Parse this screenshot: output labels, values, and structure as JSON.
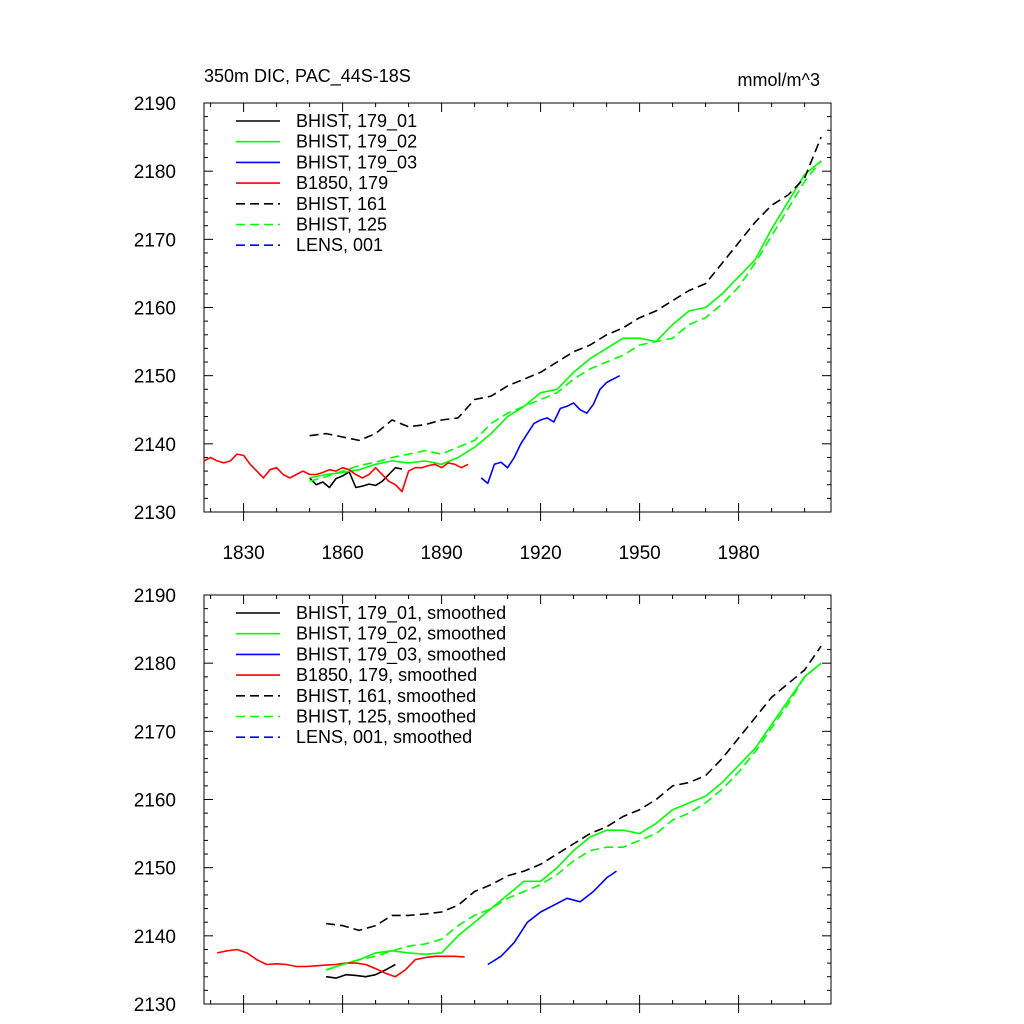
{
  "chart_data": [
    {
      "type": "line",
      "title_left": "350m DIC, PAC_44S-18S",
      "title_right": "mmol/m^3",
      "xlim": [
        1818,
        2008
      ],
      "ylim": [
        2130,
        2190
      ],
      "yticks": [
        2130,
        2140,
        2150,
        2160,
        2170,
        2180,
        2190
      ],
      "xticks": [
        1830,
        1860,
        1890,
        1920,
        1950,
        1980
      ],
      "show_x_tick_labels": true,
      "legend_position": "top-left",
      "series": [
        {
          "name": "BHIST, 179_01",
          "color": "#000000",
          "dash": "solid",
          "x": [
            1850,
            1852,
            1854,
            1856,
            1858,
            1860,
            1862,
            1864,
            1866,
            1868,
            1870,
            1872,
            1874,
            1876,
            1878
          ],
          "y": [
            2135.0,
            2134.0,
            2134.4,
            2133.6,
            2134.9,
            2135.3,
            2135.9,
            2133.6,
            2133.8,
            2134.1,
            2133.9,
            2134.5,
            2135.5,
            2136.5,
            2136.3
          ]
        },
        {
          "name": "BHIST, 179_02",
          "color": "#00ff00",
          "dash": "solid",
          "x": [
            1850,
            1855,
            1860,
            1865,
            1870,
            1875,
            1880,
            1885,
            1890,
            1895,
            1900,
            1905,
            1910,
            1915,
            1920,
            1925,
            1930,
            1935,
            1940,
            1945,
            1950,
            1955,
            1960,
            1965,
            1970,
            1975,
            1980,
            1985,
            1990,
            1995,
            2000,
            2005
          ],
          "y": [
            2135.0,
            2135.5,
            2135.8,
            2136.2,
            2137.0,
            2137.5,
            2137.2,
            2137.5,
            2137.0,
            2138.0,
            2139.5,
            2141.5,
            2144.0,
            2145.5,
            2147.5,
            2148.0,
            2150.5,
            2152.5,
            2154.0,
            2155.5,
            2155.5,
            2155.0,
            2157.5,
            2159.5,
            2160.0,
            2162.0,
            2164.5,
            2167.0,
            2171.5,
            2175.5,
            2179.5,
            2181.5
          ]
        },
        {
          "name": "BHIST, 179_03",
          "color": "#0000ff",
          "dash": "solid",
          "x": [
            1902,
            1904,
            1906,
            1908,
            1910,
            1912,
            1914,
            1916,
            1918,
            1920,
            1922,
            1924,
            1926,
            1928,
            1930,
            1932,
            1934,
            1936,
            1938,
            1940,
            1942,
            1944
          ],
          "y": [
            2135.0,
            2134.2,
            2137.0,
            2137.3,
            2136.5,
            2138.0,
            2140.0,
            2141.5,
            2143.0,
            2143.5,
            2143.8,
            2143.2,
            2145.2,
            2145.5,
            2146.0,
            2145.0,
            2144.5,
            2145.8,
            2148.0,
            2149.0,
            2149.5,
            2150.0
          ]
        },
        {
          "name": "B1850, 179",
          "color": "#ff0000",
          "dash": "solid",
          "x": [
            1818,
            1820,
            1822,
            1824,
            1826,
            1828,
            1830,
            1832,
            1834,
            1836,
            1838,
            1840,
            1842,
            1844,
            1846,
            1848,
            1850,
            1852,
            1854,
            1856,
            1858,
            1860,
            1862,
            1864,
            1866,
            1868,
            1870,
            1872,
            1874,
            1876,
            1878,
            1880,
            1882,
            1884,
            1886,
            1888,
            1890,
            1892,
            1894,
            1896,
            1898
          ],
          "y": [
            2137.5,
            2138.0,
            2137.5,
            2137.2,
            2137.5,
            2138.5,
            2138.3,
            2137.0,
            2136.0,
            2135.0,
            2136.2,
            2136.5,
            2135.5,
            2135.0,
            2135.5,
            2136.0,
            2135.5,
            2135.5,
            2135.8,
            2136.2,
            2136.0,
            2136.5,
            2136.2,
            2135.5,
            2135.0,
            2135.5,
            2136.5,
            2135.5,
            2134.5,
            2134.0,
            2133.0,
            2136.0,
            2136.5,
            2136.5,
            2136.8,
            2137.0,
            2136.5,
            2137.2,
            2137.0,
            2136.5,
            2137.0
          ]
        },
        {
          "name": "BHIST, 161",
          "color": "#000000",
          "dash": "dashed",
          "x": [
            1850,
            1855,
            1860,
            1865,
            1870,
            1875,
            1880,
            1885,
            1890,
            1895,
            1900,
            1905,
            1910,
            1915,
            1920,
            1925,
            1930,
            1935,
            1940,
            1945,
            1950,
            1955,
            1960,
            1965,
            1970,
            1975,
            1980,
            1985,
            1990,
            1995,
            2000,
            2005
          ],
          "y": [
            2141.2,
            2141.5,
            2141.0,
            2140.5,
            2141.5,
            2143.5,
            2142.5,
            2142.8,
            2143.5,
            2143.8,
            2146.5,
            2147.0,
            2148.5,
            2149.5,
            2150.5,
            2152.0,
            2153.5,
            2154.5,
            2156.0,
            2157.0,
            2158.5,
            2159.5,
            2161.0,
            2162.5,
            2163.5,
            2166.5,
            2169.5,
            2172.5,
            2175.0,
            2176.5,
            2179.0,
            2185.0
          ]
        },
        {
          "name": "BHIST, 125",
          "color": "#00ff00",
          "dash": "dashed",
          "x": [
            1850,
            1855,
            1860,
            1865,
            1870,
            1875,
            1880,
            1885,
            1890,
            1895,
            1900,
            1905,
            1910,
            1915,
            1920,
            1925,
            1930,
            1935,
            1940,
            1945,
            1950,
            1955,
            1960,
            1965,
            1970,
            1975,
            1980,
            1985,
            1990,
            1995,
            2000,
            2005
          ],
          "y": [
            2134.5,
            2135.2,
            2136.0,
            2136.8,
            2137.3,
            2138.0,
            2138.5,
            2139.0,
            2138.5,
            2139.5,
            2140.5,
            2143.0,
            2144.5,
            2145.5,
            2146.5,
            2147.5,
            2149.5,
            2151.0,
            2152.0,
            2153.0,
            2154.5,
            2155.0,
            2155.5,
            2157.5,
            2158.5,
            2160.5,
            2163.0,
            2166.5,
            2170.5,
            2174.5,
            2178.5,
            2181.5
          ]
        }
      ]
    },
    {
      "type": "line",
      "xlim": [
        1818,
        2008
      ],
      "ylim": [
        2130,
        2190
      ],
      "yticks": [
        2130,
        2140,
        2150,
        2160,
        2170,
        2180,
        2190
      ],
      "xticks": [
        1830,
        1860,
        1890,
        1920,
        1950,
        1980
      ],
      "show_x_tick_labels": false,
      "legend_position": "top-left",
      "series": [
        {
          "name": "BHIST, 179_01, smoothed",
          "color": "#000000",
          "dash": "solid",
          "x": [
            1855,
            1858,
            1861,
            1864,
            1867,
            1870,
            1873,
            1876
          ],
          "y": [
            2134.0,
            2133.8,
            2134.3,
            2134.2,
            2134.0,
            2134.3,
            2135.0,
            2135.8
          ]
        },
        {
          "name": "BHIST, 179_02, smoothed",
          "color": "#00ff00",
          "dash": "solid",
          "x": [
            1855,
            1860,
            1865,
            1870,
            1875,
            1880,
            1885,
            1890,
            1895,
            1900,
            1905,
            1910,
            1915,
            1920,
            1925,
            1930,
            1935,
            1940,
            1945,
            1950,
            1955,
            1960,
            1965,
            1970,
            1975,
            1980,
            1985,
            1990,
            1995,
            2000,
            2005
          ],
          "y": [
            2135.0,
            2135.8,
            2136.5,
            2137.5,
            2137.8,
            2137.5,
            2137.3,
            2137.5,
            2140.0,
            2142.0,
            2144.0,
            2146.0,
            2148.0,
            2148.0,
            2150.0,
            2152.5,
            2154.5,
            2155.5,
            2155.5,
            2155.0,
            2156.5,
            2158.5,
            2159.5,
            2160.5,
            2162.5,
            2165.0,
            2167.5,
            2171.0,
            2174.5,
            2178.0,
            2180.0
          ]
        },
        {
          "name": "BHIST, 179_03, smoothed",
          "color": "#0000ff",
          "dash": "solid",
          "x": [
            1904,
            1908,
            1912,
            1916,
            1920,
            1924,
            1928,
            1932,
            1936,
            1940,
            1943
          ],
          "y": [
            2135.8,
            2137.0,
            2139.0,
            2142.0,
            2143.5,
            2144.5,
            2145.5,
            2145.0,
            2146.5,
            2148.5,
            2149.5
          ]
        },
        {
          "name": "B1850, 179, smoothed",
          "color": "#ff0000",
          "dash": "solid",
          "x": [
            1822,
            1825,
            1828,
            1831,
            1834,
            1837,
            1840,
            1843,
            1846,
            1849,
            1852,
            1855,
            1858,
            1861,
            1864,
            1867,
            1870,
            1873,
            1876,
            1879,
            1882,
            1885,
            1888,
            1891,
            1894,
            1897
          ],
          "y": [
            2137.5,
            2137.8,
            2138.0,
            2137.5,
            2136.5,
            2135.8,
            2135.9,
            2135.8,
            2135.5,
            2135.5,
            2135.6,
            2135.7,
            2135.8,
            2136.0,
            2136.0,
            2135.8,
            2135.2,
            2134.5,
            2134.0,
            2135.0,
            2136.5,
            2136.8,
            2137.0,
            2137.0,
            2137.0,
            2136.9
          ]
        },
        {
          "name": "BHIST, 161, smoothed",
          "color": "#000000",
          "dash": "dashed",
          "x": [
            1855,
            1860,
            1865,
            1870,
            1875,
            1880,
            1885,
            1890,
            1895,
            1900,
            1905,
            1910,
            1915,
            1920,
            1925,
            1930,
            1935,
            1940,
            1945,
            1950,
            1955,
            1960,
            1965,
            1970,
            1975,
            1980,
            1985,
            1990,
            1995,
            2000,
            2005
          ],
          "y": [
            2141.8,
            2141.5,
            2140.8,
            2141.5,
            2143.0,
            2143.0,
            2143.2,
            2143.5,
            2144.5,
            2146.5,
            2147.5,
            2148.8,
            2149.5,
            2150.5,
            2152.0,
            2153.5,
            2155.0,
            2156.0,
            2157.5,
            2158.5,
            2160.0,
            2162.0,
            2162.5,
            2163.5,
            2166.0,
            2169.0,
            2172.0,
            2175.0,
            2177.0,
            2179.0,
            2182.5
          ]
        },
        {
          "name": "BHIST, 125, smoothed",
          "color": "#00ff00",
          "dash": "dashed",
          "x": [
            1855,
            1860,
            1865,
            1870,
            1875,
            1880,
            1885,
            1890,
            1895,
            1900,
            1905,
            1910,
            1915,
            1920,
            1925,
            1930,
            1935,
            1940,
            1945,
            1950,
            1955,
            1960,
            1965,
            1970,
            1975,
            1980,
            1985,
            1990,
            1995,
            2000,
            2005
          ],
          "y": [
            2135.0,
            2135.8,
            2136.5,
            2137.0,
            2137.8,
            2138.5,
            2138.8,
            2139.5,
            2141.5,
            2143.0,
            2144.0,
            2145.5,
            2146.5,
            2147.5,
            2149.0,
            2151.0,
            2152.5,
            2153.0,
            2153.0,
            2154.0,
            2155.0,
            2157.0,
            2158.0,
            2159.5,
            2161.5,
            2164.0,
            2167.0,
            2170.5,
            2174.0,
            2178.0,
            2180.0
          ]
        }
      ]
    }
  ],
  "legend_extra": [
    {
      "name": "LENS, 001",
      "color": "#0000ff",
      "dash": "dashed"
    },
    {
      "name": "LENS, 001, smoothed",
      "color": "#0000ff",
      "dash": "dashed"
    }
  ]
}
